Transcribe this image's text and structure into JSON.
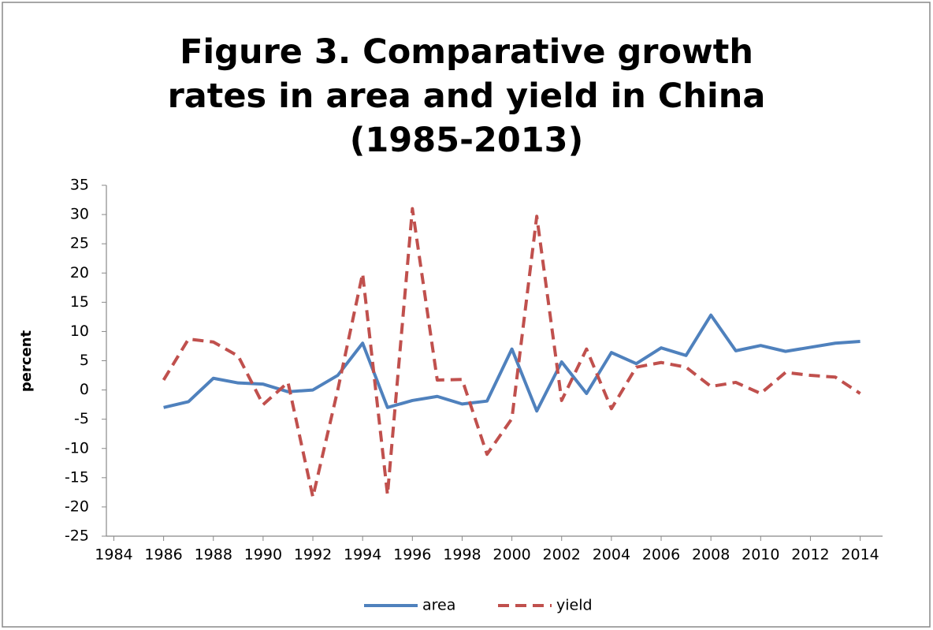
{
  "chart_data": {
    "type": "line",
    "title": "Figure 3. Comparative growth rates in area and yield in China (1985-2013)",
    "y_label": "percent",
    "x": [
      1986,
      1987,
      1988,
      1989,
      1990,
      1991,
      1992,
      1993,
      1994,
      1995,
      1996,
      1997,
      1998,
      1999,
      2000,
      2001,
      2002,
      2003,
      2004,
      2005,
      2006,
      2007,
      2008,
      2009,
      2010,
      2011,
      2012,
      2013,
      2014
    ],
    "series": [
      {
        "name": "area",
        "color": "#4f81bd",
        "dash": false,
        "values": [
          -3,
          -2,
          2,
          1.2,
          1,
          -0.3,
          0,
          2.5,
          8,
          -3,
          -1.8,
          -1.1,
          -2.4,
          -1.9,
          7,
          -3.6,
          4.8,
          -0.6,
          6.4,
          4.5,
          7.2,
          5.9,
          12.8,
          6.7,
          7.6,
          6.6,
          7.3,
          8,
          8.3
        ]
      },
      {
        "name": "yield",
        "color": "#c0504d",
        "dash": true,
        "values": [
          1.7,
          8.7,
          8.2,
          5.8,
          -2.5,
          1.3,
          -18.3,
          0,
          19.9,
          -17.9,
          31,
          1.7,
          1.8,
          -11,
          -4.9,
          29.7,
          -1.8,
          7,
          -3.2,
          3.9,
          4.7,
          3.9,
          0.6,
          1.3,
          -0.6,
          3,
          2.5,
          2.2,
          -0.6
        ]
      }
    ],
    "xlim": [
      1983.7,
      2014.9
    ],
    "xticks": [
      1984,
      1986,
      1988,
      1990,
      1992,
      1994,
      1996,
      1998,
      2000,
      2002,
      2004,
      2006,
      2008,
      2010,
      2012,
      2014
    ],
    "ylim": [
      -25,
      35
    ],
    "yticks": [
      -25,
      -20,
      -15,
      -10,
      -5,
      0,
      5,
      10,
      15,
      20,
      25,
      30,
      35
    ],
    "grid": false,
    "legend": "bottom"
  }
}
